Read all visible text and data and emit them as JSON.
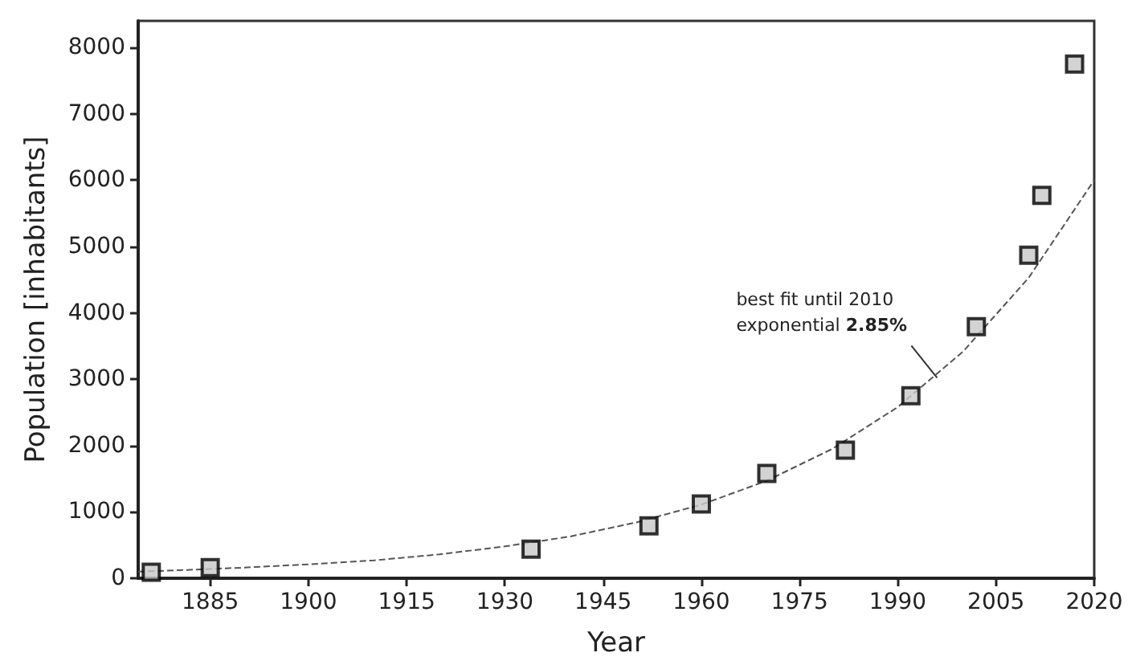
{
  "chart_data": {
    "type": "scatter",
    "xlabel": "Year",
    "ylabel": "Population [inhabitants]",
    "xlim": [
      1874,
      2020
    ],
    "xticks": [
      1885,
      1900,
      1915,
      1930,
      1945,
      1960,
      1975,
      1990,
      2005,
      2020
    ],
    "ylim": [
      0,
      8400
    ],
    "yticks": [
      0,
      1000,
      2000,
      3000,
      4000,
      5000,
      6000,
      7000,
      8000
    ],
    "grid": false,
    "series": [
      {
        "color": "#c8c8c8",
        "marker": "square",
        "x": [
          1876,
          1885,
          1934,
          1952,
          1960,
          1970,
          1982,
          1992,
          2002,
          2010,
          2012,
          2017
        ],
        "values": [
          90,
          160,
          440,
          790,
          1120,
          1580,
          1930,
          2750,
          3790,
          4870,
          5770,
          7750
        ]
      },
      {
        "type": "line",
        "color": "#555555",
        "line_style": "dashed",
        "marker": "none",
        "x": [
          1874,
          1880,
          1890,
          1900,
          1910,
          1920,
          1930,
          1940,
          1950,
          1960,
          1970,
          1980,
          1990,
          2000,
          2010,
          2020
        ],
        "values": [
          100,
          120,
          160,
          210,
          270,
          360,
          480,
          630,
          840,
          1110,
          1470,
          1950,
          2580,
          3420,
          4530,
          6000
        ]
      }
    ],
    "annotations": [
      {
        "text": "best fit until 2010\nexponential 2.85%",
        "x": 1996,
        "y": 3020
      }
    ]
  }
}
